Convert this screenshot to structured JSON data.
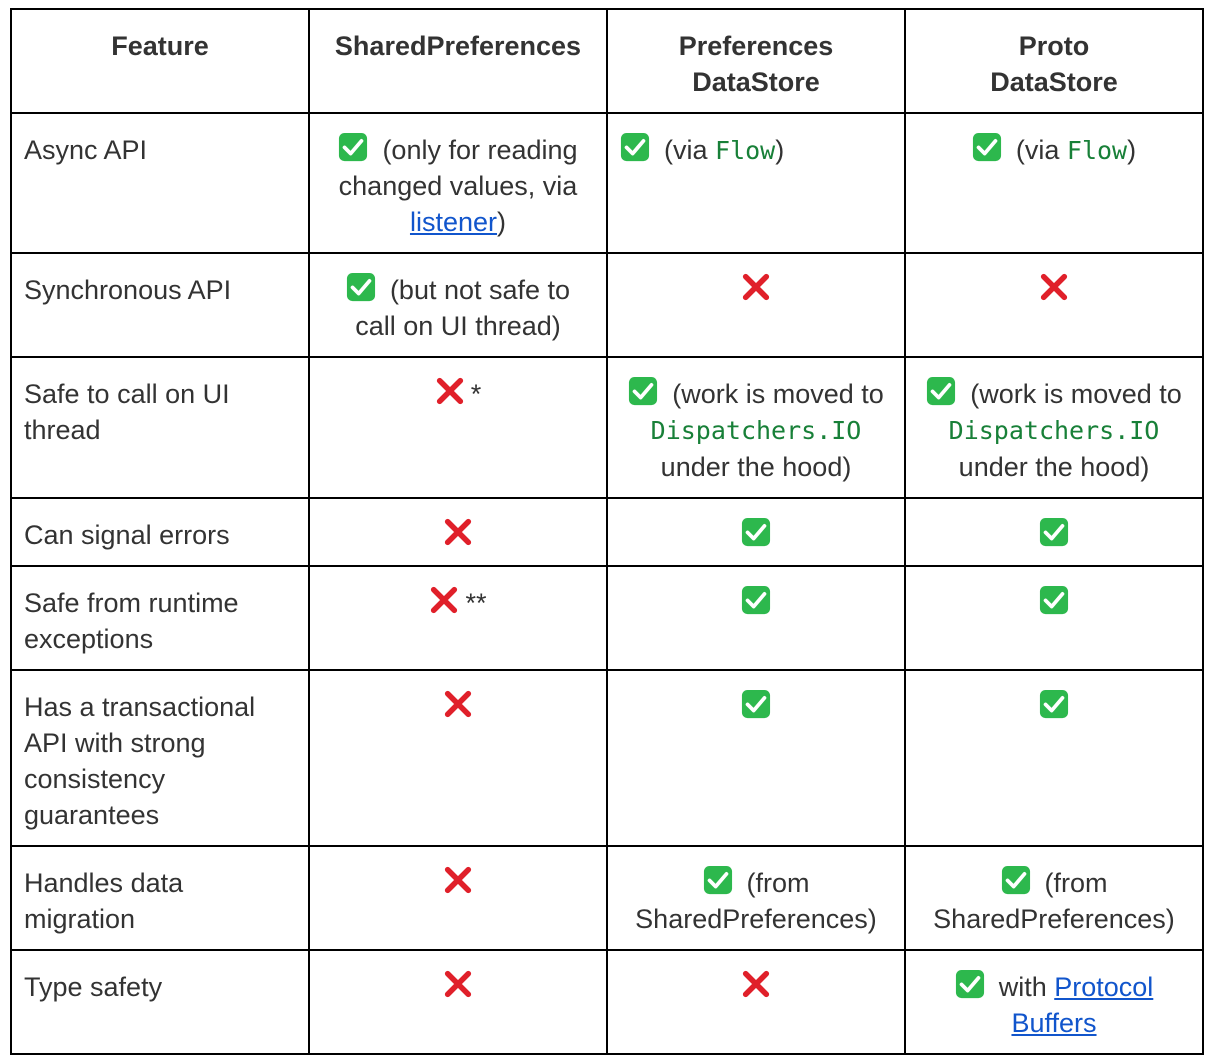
{
  "header": {
    "feature": "Feature",
    "shared_prefs": "SharedPreferences",
    "prefs_datastore": "Preferences DataStore",
    "proto_datastore": "Proto DataStore"
  },
  "icons": {
    "yes": "check-mark-icon",
    "no": "cross-mark-icon",
    "yes_color": "#2db84d",
    "no_color": "#e0202a"
  },
  "rows": [
    {
      "feature": "Async API",
      "shared_prefs": {
        "text_before": "(only for reading changed values, via ",
        "link": "listener",
        "text_after": ")"
      },
      "prefs_datastore": {
        "text_before": "(via ",
        "code": "Flow",
        "text_after": ")"
      },
      "proto_datastore": {
        "text_before": "(via ",
        "code": "Flow",
        "text_after": ")"
      }
    },
    {
      "feature": "Synchronous API",
      "shared_prefs": {
        "text": "(but not safe to call on UI thread)"
      }
    },
    {
      "feature": "Safe to call on UI thread",
      "shared_prefs": {
        "note": "*"
      },
      "prefs_datastore": {
        "text_before": "(work is moved to ",
        "code": "Dispatchers.IO",
        "text_after": " under the hood)"
      },
      "proto_datastore": {
        "text_before": "(work is moved to ",
        "code": "Dispatchers.IO",
        "text_after": " under the hood)"
      }
    },
    {
      "feature": "Can signal errors"
    },
    {
      "feature": "Safe from runtime exceptions",
      "shared_prefs": {
        "note": "**"
      }
    },
    {
      "feature": "Has a transactional API with strong consistency guarantees"
    },
    {
      "feature": "Handles data migration",
      "prefs_datastore": {
        "text": "(from SharedPreferences)"
      },
      "proto_datastore": {
        "text": "(from SharedPreferences)"
      }
    },
    {
      "feature": "Type safety",
      "proto_datastore": {
        "text_before": "with ",
        "link": "Protocol Buffers"
      }
    }
  ]
}
